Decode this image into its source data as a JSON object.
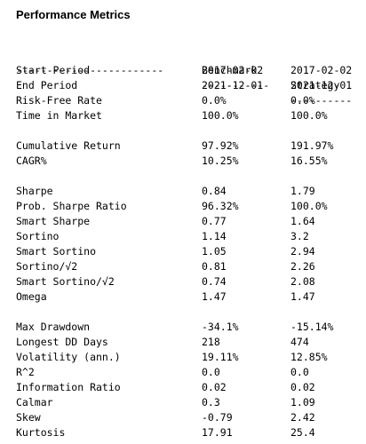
{
  "title": "Performance Metrics",
  "header": {
    "metric": "",
    "benchmark": "Benchmark",
    "strategy": "Strategy"
  },
  "separator": {
    "metric": "------------------------",
    "benchmark": "-----------",
    "strategy": "----------"
  },
  "groups": [
    [
      {
        "metric": "Start Period",
        "benchmark": "2017-02-02",
        "strategy": "2017-02-02"
      },
      {
        "metric": "End Period",
        "benchmark": "2021-12-01",
        "strategy": "2021-12-01"
      },
      {
        "metric": "Risk-Free Rate",
        "benchmark": "0.0%",
        "strategy": "0.0%"
      },
      {
        "metric": "Time in Market",
        "benchmark": "100.0%",
        "strategy": "100.0%"
      }
    ],
    [
      {
        "metric": "Cumulative Return",
        "benchmark": "97.92%",
        "strategy": "191.97%"
      },
      {
        "metric": "CAGR%",
        "benchmark": "10.25%",
        "strategy": "16.55%"
      }
    ],
    [
      {
        "metric": "Sharpe",
        "benchmark": "0.84",
        "strategy": "1.79"
      },
      {
        "metric": "Prob. Sharpe Ratio",
        "benchmark": "96.32%",
        "strategy": "100.0%"
      },
      {
        "metric": "Smart Sharpe",
        "benchmark": "0.77",
        "strategy": "1.64"
      },
      {
        "metric": "Sortino",
        "benchmark": "1.14",
        "strategy": "3.2"
      },
      {
        "metric": "Smart Sortino",
        "benchmark": "1.05",
        "strategy": "2.94"
      },
      {
        "metric": "Sortino/√2",
        "benchmark": "0.81",
        "strategy": "2.26"
      },
      {
        "metric": "Smart Sortino/√2",
        "benchmark": "0.74",
        "strategy": "2.08"
      },
      {
        "metric": "Omega",
        "benchmark": "1.47",
        "strategy": "1.47"
      }
    ],
    [
      {
        "metric": "Max Drawdown",
        "benchmark": "-34.1%",
        "strategy": "-15.14%"
      },
      {
        "metric": "Longest DD Days",
        "benchmark": "218",
        "strategy": "474"
      },
      {
        "metric": "Volatility (ann.)",
        "benchmark": "19.11%",
        "strategy": "12.85%"
      },
      {
        "metric": "R^2",
        "benchmark": "0.0",
        "strategy": "0.0"
      },
      {
        "metric": "Information Ratio",
        "benchmark": "0.02",
        "strategy": "0.02"
      },
      {
        "metric": "Calmar",
        "benchmark": "0.3",
        "strategy": "1.09"
      },
      {
        "metric": "Skew",
        "benchmark": "-0.79",
        "strategy": "2.42"
      },
      {
        "metric": "Kurtosis",
        "benchmark": "17.91",
        "strategy": "25.4"
      }
    ]
  ]
}
